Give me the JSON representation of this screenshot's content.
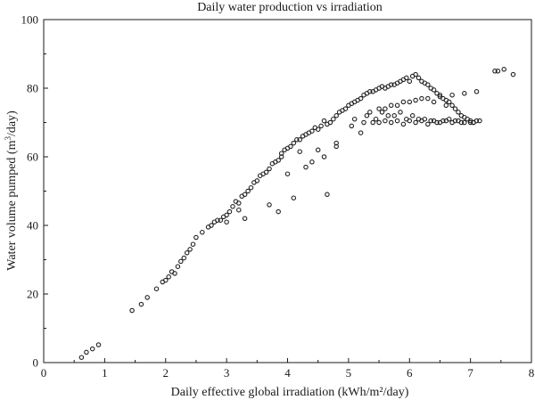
{
  "chart_data": {
    "type": "scatter",
    "title": "Daily water production vs irradiation",
    "xlabel": "Daily effective global irradiation (kWh/m²/day)",
    "ylabel_main": "Water volume pumped (m",
    "ylabel_sup": "3",
    "ylabel_tail": "/day)",
    "xlim": [
      0,
      8
    ],
    "ylim": [
      0,
      100
    ],
    "xticks": [
      "0",
      "1",
      "2",
      "3",
      "4",
      "5",
      "6",
      "7",
      "8"
    ],
    "yticks": [
      "0",
      "20",
      "40",
      "60",
      "80",
      "100"
    ],
    "grid": false,
    "marker": "open-circle",
    "series": [
      {
        "x": [
          0.62,
          0.7,
          0.8,
          0.9,
          1.45,
          1.6,
          1.7,
          1.85,
          1.95,
          2.0,
          2.05,
          2.1,
          2.15,
          2.2,
          2.25,
          2.3,
          2.35,
          2.4,
          2.45,
          2.5,
          2.6,
          2.7,
          2.75,
          2.8,
          2.85,
          2.9,
          2.95,
          3.0,
          3.0,
          3.05,
          3.1,
          3.15,
          3.2,
          3.2,
          3.25,
          3.3,
          3.35,
          3.4,
          3.45,
          3.5,
          3.55,
          3.6,
          3.65,
          3.7,
          3.75,
          3.8,
          3.85,
          3.9,
          3.9,
          3.95,
          4.0,
          4.05,
          4.1,
          4.15,
          4.2,
          4.25,
          4.3,
          4.35,
          4.4,
          4.45,
          4.5,
          4.55,
          4.6,
          4.65,
          4.7,
          4.75,
          4.8,
          4.85,
          4.9,
          4.95,
          5.0,
          5.05,
          5.1,
          5.15,
          5.2,
          5.25,
          5.3,
          5.35,
          5.4,
          5.45,
          5.5,
          5.55,
          5.6,
          5.65,
          5.7,
          5.75,
          5.8,
          5.85,
          5.9,
          5.95,
          6.0,
          6.05,
          6.1,
          6.15,
          6.2,
          6.25,
          6.3,
          6.35,
          6.4,
          6.45,
          6.5,
          6.55,
          6.6,
          6.65,
          6.7,
          6.75,
          6.8,
          6.85,
          6.9,
          6.95,
          7.0,
          7.05,
          7.1,
          7.15,
          7.4,
          7.45,
          7.55,
          7.7,
          3.85,
          4.1,
          4.65,
          3.7,
          3.3,
          4.0,
          4.3,
          4.8,
          5.2,
          5.4,
          5.6,
          5.8,
          6.0,
          6.2,
          6.4,
          6.6,
          6.8,
          5.1,
          5.3,
          5.5,
          5.7,
          5.9,
          6.1,
          6.3,
          6.5,
          6.7,
          6.9,
          7.1,
          5.05,
          5.25,
          5.45,
          5.65,
          5.85,
          6.05,
          6.25,
          6.45,
          6.65,
          6.85,
          7.05,
          5.6,
          5.8,
          6.0,
          6.2,
          6.4,
          6.6,
          5.5,
          5.7,
          5.9,
          6.1,
          6.3,
          6.5,
          6.7,
          6.9,
          7.0,
          5.35,
          5.55,
          5.75,
          5.95,
          6.15,
          6.35,
          6.55,
          6.75,
          4.4,
          4.6,
          4.8,
          4.2,
          4.5
        ],
        "y": [
          1.5,
          3.0,
          4.0,
          5.2,
          15.2,
          17.0,
          19.0,
          21.5,
          23.5,
          24.0,
          25.0,
          26.5,
          26.0,
          28.0,
          29.5,
          30.5,
          32.0,
          33.0,
          34.5,
          36.5,
          38.0,
          39.5,
          40.0,
          41.0,
          41.5,
          41.5,
          42.5,
          43.0,
          41.0,
          44.0,
          45.5,
          47.0,
          46.5,
          44.5,
          48.5,
          49.0,
          50.0,
          51.0,
          52.5,
          53.0,
          54.5,
          55.0,
          55.5,
          56.5,
          58.0,
          58.5,
          59.0,
          61.0,
          60.0,
          62.0,
          62.5,
          63.0,
          64.0,
          65.0,
          65.0,
          66.0,
          66.5,
          67.0,
          67.5,
          68.5,
          68.0,
          69.0,
          70.5,
          69.5,
          70.0,
          71.0,
          72.0,
          73.0,
          73.5,
          74.0,
          75.0,
          75.5,
          76.0,
          76.5,
          77.0,
          78.0,
          78.5,
          79.0,
          79.0,
          79.5,
          80.0,
          80.5,
          80.0,
          80.5,
          81.0,
          81.0,
          81.5,
          82.0,
          82.5,
          83.0,
          82.0,
          83.5,
          84.0,
          83.0,
          82.0,
          81.5,
          81.0,
          80.0,
          79.5,
          78.5,
          78.0,
          77.0,
          76.5,
          76.0,
          75.0,
          74.0,
          73.0,
          72.0,
          71.5,
          71.0,
          70.5,
          70.0,
          70.5,
          70.5,
          85.0,
          85.0,
          85.5,
          84.0,
          44.0,
          48.0,
          49.0,
          46.0,
          42.0,
          55.0,
          57.0,
          63.0,
          67.0,
          70.0,
          70.5,
          70.5,
          70.5,
          70.5,
          70.5,
          70.5,
          70.5,
          71.0,
          72.0,
          74.0,
          75.0,
          76.0,
          76.5,
          77.0,
          77.5,
          78.0,
          78.5,
          79.0,
          69.0,
          70.0,
          71.0,
          72.0,
          73.0,
          72.0,
          71.0,
          70.0,
          71.0,
          70.0,
          70.0,
          74.0,
          75.0,
          76.0,
          77.0,
          76.0,
          75.0,
          70.0,
          70.0,
          69.5,
          70.0,
          69.5,
          70.0,
          70.0,
          70.0,
          70.0,
          73.0,
          73.0,
          72.0,
          71.0,
          71.0,
          70.5,
          70.5,
          70.5,
          58.5,
          60.0,
          64.0,
          61.5,
          62.0
        ]
      }
    ]
  }
}
